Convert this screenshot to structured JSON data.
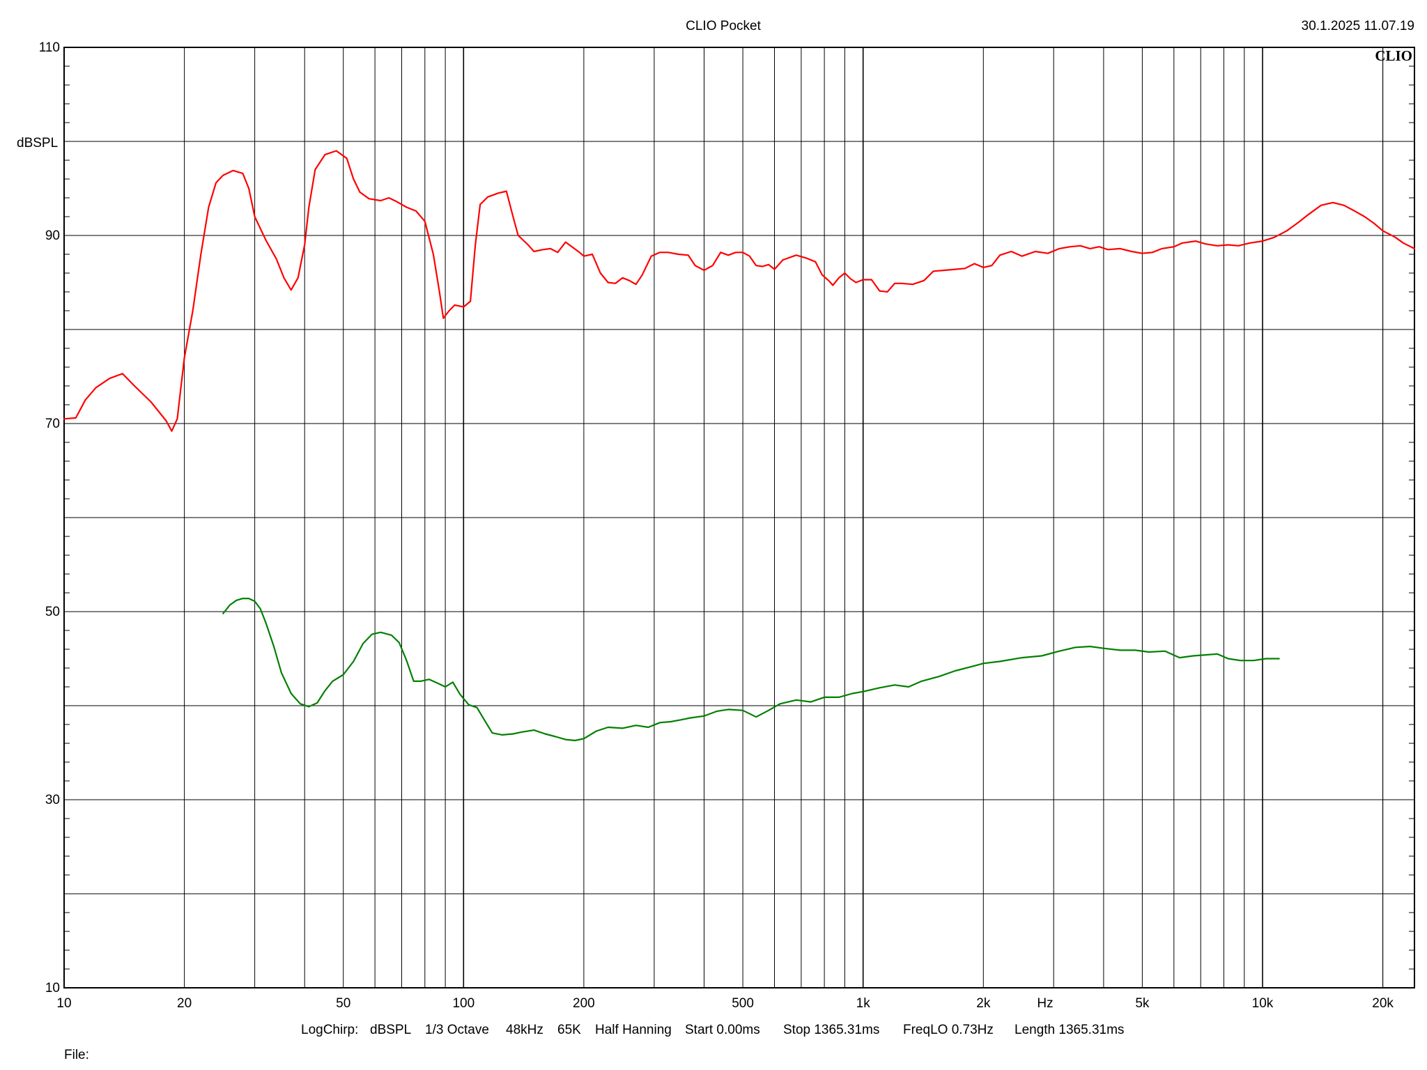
{
  "header": {
    "app_title": "CLIO Pocket",
    "timestamp": "30.1.2025 11.07.19",
    "logo": "CLIO"
  },
  "footer": {
    "settings": [
      "LogChirp:",
      "dBSPL",
      "1/3 Octave",
      "48kHz",
      "65K",
      "Half Hanning",
      "Start 0.00ms",
      "Stop 1365.31ms",
      "FreqLO 0.73Hz",
      "Length 1365.31ms"
    ],
    "file_label": "File:"
  },
  "chart_data": {
    "type": "line",
    "title": "",
    "xlabel": "Hz",
    "ylabel": "dBSPL",
    "x_scale": "log",
    "xlim": [
      10,
      24000
    ],
    "ylim": [
      10,
      110
    ],
    "grid": true,
    "x_ticks": [
      {
        "value": 10,
        "label": "10"
      },
      {
        "value": 20,
        "label": "20"
      },
      {
        "value": 50,
        "label": "50"
      },
      {
        "value": 100,
        "label": "100"
      },
      {
        "value": 200,
        "label": "200"
      },
      {
        "value": 500,
        "label": "500"
      },
      {
        "value": 1000,
        "label": "1k"
      },
      {
        "value": 2000,
        "label": "2k"
      },
      {
        "value": 5000,
        "label": "5k"
      },
      {
        "value": 10000,
        "label": "10k"
      },
      {
        "value": 20000,
        "label": "20k"
      }
    ],
    "y_ticks": [
      {
        "value": 10,
        "label": "10"
      },
      {
        "value": 30,
        "label": "30"
      },
      {
        "value": 50,
        "label": "50"
      },
      {
        "value": 70,
        "label": "70"
      },
      {
        "value": 90,
        "label": "90"
      },
      {
        "value": 110,
        "label": "110"
      }
    ],
    "series": [
      {
        "color": "#ff0000",
        "points": [
          [
            10,
            70.5
          ],
          [
            10.7,
            70.6
          ],
          [
            11.3,
            72.5
          ],
          [
            12,
            73.8
          ],
          [
            13,
            74.8
          ],
          [
            14,
            75.3
          ],
          [
            15,
            74
          ],
          [
            16.5,
            72.3
          ],
          [
            18,
            70.3
          ],
          [
            18.6,
            69.2
          ],
          [
            19.2,
            70.5
          ],
          [
            20,
            77
          ],
          [
            21,
            82
          ],
          [
            22,
            88
          ],
          [
            23,
            93
          ],
          [
            24,
            95.6
          ],
          [
            25,
            96.4
          ],
          [
            26.5,
            96.9
          ],
          [
            28,
            96.6
          ],
          [
            29,
            95
          ],
          [
            30,
            92
          ],
          [
            32,
            89.5
          ],
          [
            34,
            87.5
          ],
          [
            35.5,
            85.5
          ],
          [
            37,
            84.2
          ],
          [
            38.5,
            85.5
          ],
          [
            40,
            89
          ],
          [
            41,
            93
          ],
          [
            42.5,
            97
          ],
          [
            45,
            98.6
          ],
          [
            48,
            99
          ],
          [
            51,
            98.2
          ],
          [
            53,
            96
          ],
          [
            55,
            94.6
          ],
          [
            58,
            93.9
          ],
          [
            62,
            93.7
          ],
          [
            65,
            94
          ],
          [
            68,
            93.6
          ],
          [
            72,
            93
          ],
          [
            76,
            92.6
          ],
          [
            80,
            91.5
          ],
          [
            84,
            88
          ],
          [
            87,
            84
          ],
          [
            89,
            81.2
          ],
          [
            92,
            82
          ],
          [
            95,
            82.6
          ],
          [
            100,
            82.4
          ],
          [
            104,
            83
          ],
          [
            107,
            89
          ],
          [
            110,
            93.3
          ],
          [
            115,
            94.1
          ],
          [
            122,
            94.5
          ],
          [
            128,
            94.7
          ],
          [
            133,
            92
          ],
          [
            137,
            90
          ],
          [
            145,
            89
          ],
          [
            150,
            88.3
          ],
          [
            158,
            88.5
          ],
          [
            165,
            88.6
          ],
          [
            172,
            88.2
          ],
          [
            180,
            89.3
          ],
          [
            188,
            88.7
          ],
          [
            195,
            88.2
          ],
          [
            200,
            87.8
          ],
          [
            210,
            88
          ],
          [
            220,
            86
          ],
          [
            230,
            85
          ],
          [
            240,
            84.9
          ],
          [
            250,
            85.5
          ],
          [
            260,
            85.2
          ],
          [
            270,
            84.8
          ],
          [
            280,
            85.8
          ],
          [
            295,
            87.8
          ],
          [
            310,
            88.2
          ],
          [
            325,
            88.2
          ],
          [
            345,
            88
          ],
          [
            365,
            87.9
          ],
          [
            380,
            86.8
          ],
          [
            400,
            86.3
          ],
          [
            420,
            86.8
          ],
          [
            440,
            88.2
          ],
          [
            460,
            87.9
          ],
          [
            480,
            88.2
          ],
          [
            500,
            88.2
          ],
          [
            520,
            87.8
          ],
          [
            540,
            86.8
          ],
          [
            560,
            86.7
          ],
          [
            580,
            86.9
          ],
          [
            600,
            86.4
          ],
          [
            630,
            87.4
          ],
          [
            680,
            87.9
          ],
          [
            720,
            87.6
          ],
          [
            760,
            87.2
          ],
          [
            790,
            85.8
          ],
          [
            820,
            85.2
          ],
          [
            840,
            84.7
          ],
          [
            870,
            85.5
          ],
          [
            900,
            86
          ],
          [
            930,
            85.4
          ],
          [
            960,
            85
          ],
          [
            1000,
            85.3
          ],
          [
            1050,
            85.3
          ],
          [
            1100,
            84.1
          ],
          [
            1150,
            84
          ],
          [
            1200,
            84.9
          ],
          [
            1250,
            84.9
          ],
          [
            1330,
            84.8
          ],
          [
            1420,
            85.2
          ],
          [
            1500,
            86.2
          ],
          [
            1600,
            86.3
          ],
          [
            1700,
            86.4
          ],
          [
            1800,
            86.5
          ],
          [
            1900,
            87
          ],
          [
            2000,
            86.6
          ],
          [
            2100,
            86.8
          ],
          [
            2200,
            87.9
          ],
          [
            2350,
            88.3
          ],
          [
            2500,
            87.8
          ],
          [
            2700,
            88.3
          ],
          [
            2900,
            88.1
          ],
          [
            3100,
            88.6
          ],
          [
            3300,
            88.8
          ],
          [
            3500,
            88.9
          ],
          [
            3700,
            88.6
          ],
          [
            3900,
            88.8
          ],
          [
            4100,
            88.5
          ],
          [
            4400,
            88.6
          ],
          [
            4700,
            88.3
          ],
          [
            5000,
            88.1
          ],
          [
            5300,
            88.2
          ],
          [
            5600,
            88.6
          ],
          [
            6000,
            88.8
          ],
          [
            6300,
            89.2
          ],
          [
            6800,
            89.4
          ],
          [
            7200,
            89.1
          ],
          [
            7700,
            88.9
          ],
          [
            8200,
            89
          ],
          [
            8700,
            88.9
          ],
          [
            9300,
            89.2
          ],
          [
            10000,
            89.4
          ],
          [
            10700,
            89.8
          ],
          [
            11500,
            90.5
          ],
          [
            12300,
            91.4
          ],
          [
            13000,
            92.2
          ],
          [
            14000,
            93.2
          ],
          [
            15000,
            93.5
          ],
          [
            16000,
            93.2
          ],
          [
            17000,
            92.6
          ],
          [
            18000,
            92
          ],
          [
            19000,
            91.3
          ],
          [
            20000,
            90.5
          ],
          [
            21500,
            89.8
          ],
          [
            22500,
            89.2
          ],
          [
            24000,
            88.6
          ]
        ]
      },
      {
        "color": "#008000",
        "points": [
          [
            25,
            49.8
          ],
          [
            26,
            50.7
          ],
          [
            27,
            51.2
          ],
          [
            28,
            51.4
          ],
          [
            29,
            51.4
          ],
          [
            30,
            51.1
          ],
          [
            31,
            50.3
          ],
          [
            32,
            48.8
          ],
          [
            33.5,
            46.3
          ],
          [
            35,
            43.5
          ],
          [
            37,
            41.3
          ],
          [
            39,
            40.2
          ],
          [
            41,
            39.9
          ],
          [
            43,
            40.3
          ],
          [
            45,
            41.6
          ],
          [
            47,
            42.6
          ],
          [
            50,
            43.3
          ],
          [
            53,
            44.7
          ],
          [
            56,
            46.6
          ],
          [
            59,
            47.6
          ],
          [
            62,
            47.8
          ],
          [
            66,
            47.5
          ],
          [
            69,
            46.7
          ],
          [
            72,
            44.8
          ],
          [
            75,
            42.6
          ],
          [
            78,
            42.6
          ],
          [
            82,
            42.8
          ],
          [
            86,
            42.4
          ],
          [
            90,
            42
          ],
          [
            94,
            42.5
          ],
          [
            98,
            41.2
          ],
          [
            103,
            40.1
          ],
          [
            108,
            39.8
          ],
          [
            113,
            38.4
          ],
          [
            118,
            37.1
          ],
          [
            125,
            36.9
          ],
          [
            133,
            37
          ],
          [
            140,
            37.2
          ],
          [
            150,
            37.4
          ],
          [
            160,
            37
          ],
          [
            170,
            36.7
          ],
          [
            180,
            36.4
          ],
          [
            190,
            36.3
          ],
          [
            200,
            36.5
          ],
          [
            215,
            37.3
          ],
          [
            230,
            37.7
          ],
          [
            250,
            37.6
          ],
          [
            270,
            37.9
          ],
          [
            290,
            37.7
          ],
          [
            310,
            38.2
          ],
          [
            330,
            38.3
          ],
          [
            350,
            38.5
          ],
          [
            370,
            38.7
          ],
          [
            400,
            38.9
          ],
          [
            430,
            39.4
          ],
          [
            460,
            39.6
          ],
          [
            500,
            39.5
          ],
          [
            540,
            38.8
          ],
          [
            580,
            39.5
          ],
          [
            620,
            40.2
          ],
          [
            680,
            40.6
          ],
          [
            740,
            40.4
          ],
          [
            800,
            40.9
          ],
          [
            870,
            40.9
          ],
          [
            940,
            41.3
          ],
          [
            1000,
            41.5
          ],
          [
            1100,
            41.9
          ],
          [
            1200,
            42.2
          ],
          [
            1300,
            42
          ],
          [
            1400,
            42.6
          ],
          [
            1550,
            43.1
          ],
          [
            1700,
            43.7
          ],
          [
            1850,
            44.1
          ],
          [
            2000,
            44.5
          ],
          [
            2200,
            44.7
          ],
          [
            2500,
            45.1
          ],
          [
            2800,
            45.3
          ],
          [
            3100,
            45.8
          ],
          [
            3400,
            46.2
          ],
          [
            3700,
            46.3
          ],
          [
            4000,
            46.1
          ],
          [
            4400,
            45.9
          ],
          [
            4800,
            45.9
          ],
          [
            5200,
            45.7
          ],
          [
            5700,
            45.8
          ],
          [
            6200,
            45.1
          ],
          [
            6700,
            45.3
          ],
          [
            7200,
            45.4
          ],
          [
            7700,
            45.5
          ],
          [
            8200,
            45
          ],
          [
            8800,
            44.8
          ],
          [
            9500,
            44.8
          ],
          [
            10200,
            45
          ],
          [
            11000,
            45
          ]
        ]
      }
    ]
  }
}
